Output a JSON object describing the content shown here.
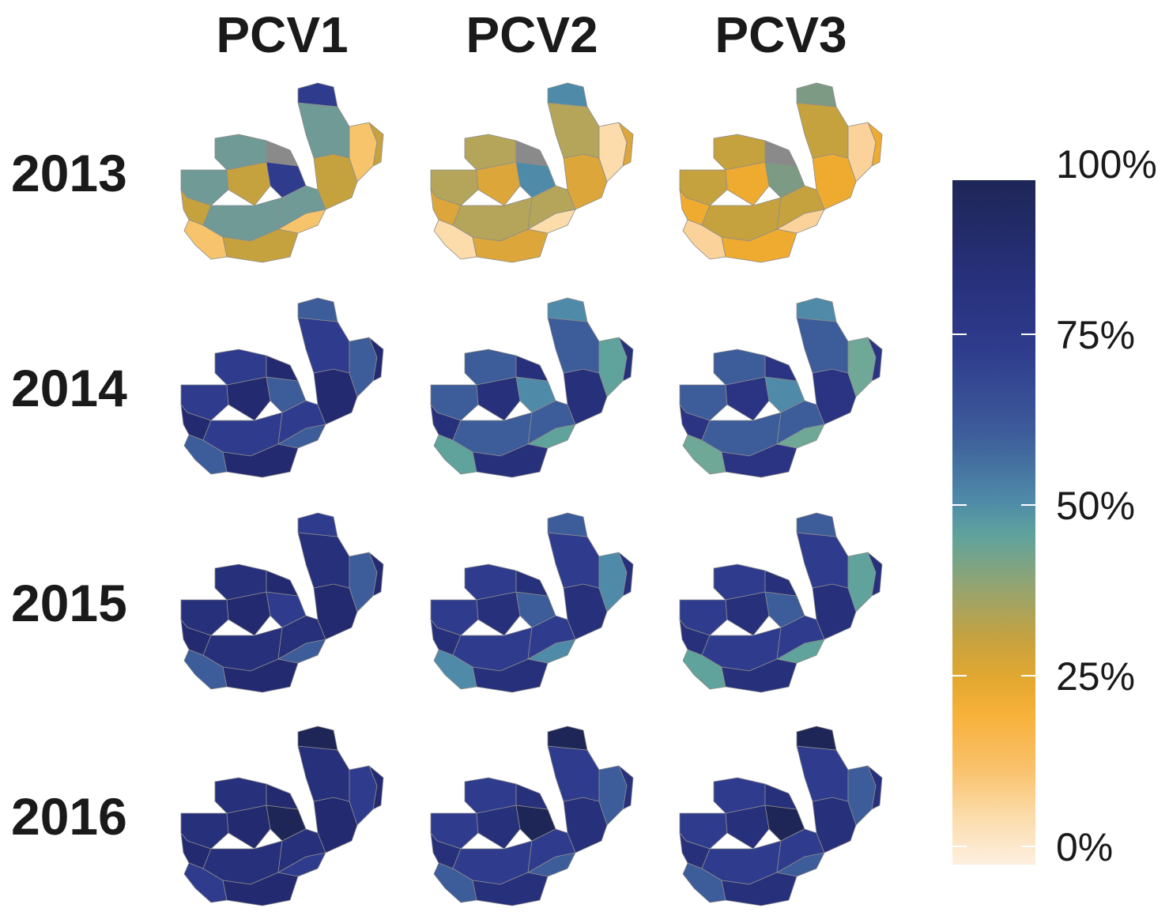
{
  "columns": [
    "PCV1",
    "PCV2",
    "PCV3"
  ],
  "rows": [
    "2013",
    "2014",
    "2015",
    "2016"
  ],
  "legend": {
    "labels": [
      "100%",
      "75%",
      "50%",
      "25%",
      "0%"
    ],
    "scale": {
      "min": 0,
      "max": 100,
      "colors": [
        "#fdefe0",
        "#f7b13a",
        "#5fa39c",
        "#2f3c8d",
        "#1e2657"
      ]
    }
  },
  "map_colors": {
    "2013": {
      "PCV1": {
        "dominant": "#c6a23f",
        "secondary": "#6f9a96",
        "accent": "#2f3c8d",
        "light": "#f7c46b",
        "missing": "#8a8a8a"
      },
      "PCV2": {
        "dominant": "#dca63a",
        "secondary": "#b4a55a",
        "accent": "#4f8ba8",
        "light": "#fbdcaa",
        "missing": "#8a8a8a"
      },
      "PCV3": {
        "dominant": "#efab30",
        "secondary": "#c6a23f",
        "accent": "#7c9a84",
        "light": "#fbd39a",
        "missing": "#8a8a8a"
      }
    },
    "2014": {
      "PCV1": {
        "dominant": "#232a70",
        "secondary": "#2f3c8d",
        "accent": "#3d5c9a",
        "light": "#3d5c9a"
      },
      "PCV2": {
        "dominant": "#27307a",
        "secondary": "#3d5c9a",
        "accent": "#4f8ba8",
        "light": "#5fa39c"
      },
      "PCV3": {
        "dominant": "#2a3482",
        "secondary": "#3d5c9a",
        "accent": "#4f8ba8",
        "light": "#6fa896"
      }
    },
    "2015": {
      "PCV1": {
        "dominant": "#232a70",
        "secondary": "#27307a",
        "accent": "#2f3c8d",
        "light": "#3d5c9a"
      },
      "PCV2": {
        "dominant": "#27307a",
        "secondary": "#2f3c8d",
        "accent": "#3d5c9a",
        "light": "#4f8ba8"
      },
      "PCV3": {
        "dominant": "#27307a",
        "secondary": "#2f3c8d",
        "accent": "#3d5c9a",
        "light": "#5fa39c"
      }
    },
    "2016": {
      "PCV1": {
        "dominant": "#232a70",
        "secondary": "#27307a",
        "accent": "#1e2657",
        "light": "#2f3c8d"
      },
      "PCV2": {
        "dominant": "#27307a",
        "secondary": "#2f3c8d",
        "accent": "#1e2657",
        "light": "#3d5c9a"
      },
      "PCV3": {
        "dominant": "#27307a",
        "secondary": "#2f3c8d",
        "accent": "#1e2657",
        "light": "#3d5c9a"
      }
    }
  }
}
